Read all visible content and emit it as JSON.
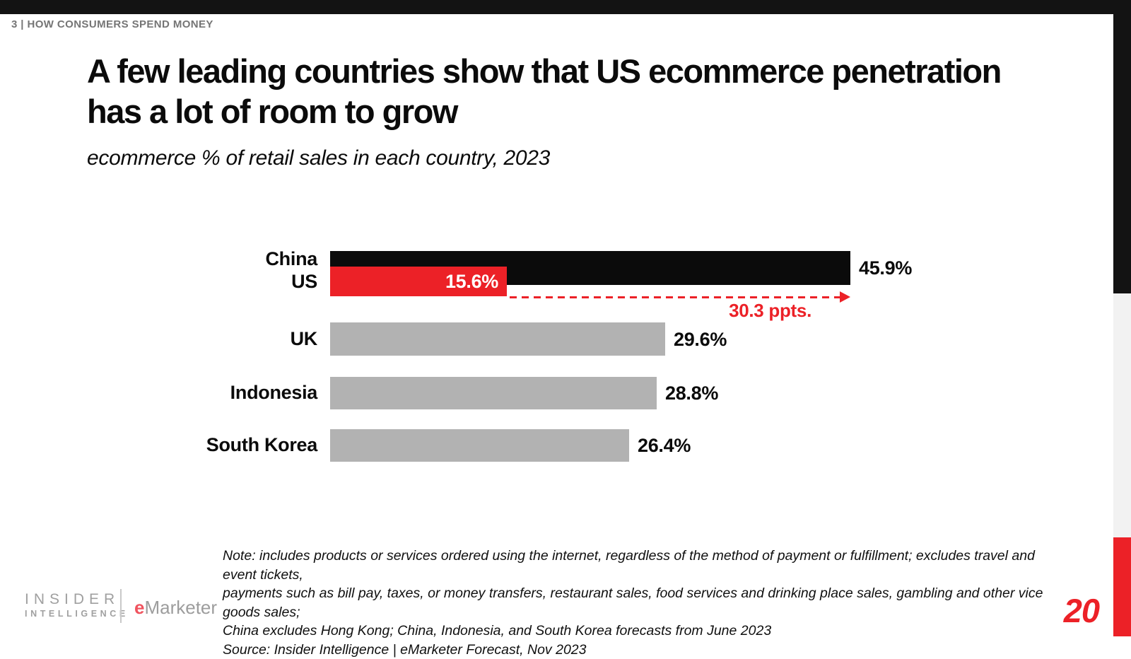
{
  "page": {
    "kicker": "3 | HOW CONSUMERS SPEND MONEY",
    "page_number": "20"
  },
  "header": {
    "title": "A few leading countries show that US ecommerce penetration has a lot of room to grow",
    "subtitle": "ecommerce % of retail sales in each country, 2023"
  },
  "chart_data": {
    "type": "bar",
    "orientation": "horizontal",
    "title": "ecommerce % of retail sales in each country, 2023",
    "categories": [
      "China",
      "US",
      "UK",
      "Indonesia",
      "South Korea"
    ],
    "values": [
      45.9,
      15.6,
      29.6,
      28.8,
      26.4
    ],
    "value_labels": [
      "45.9%",
      "15.6%",
      "29.6%",
      "28.8%",
      "26.4%"
    ],
    "unit": "%",
    "xlim": [
      0,
      45.9
    ],
    "axes_shown": false,
    "grid": false,
    "bar_colors": [
      "#0b0b0b",
      "#ec2127",
      "#b2b2b2",
      "#b2b2b2",
      "#b2b2b2"
    ],
    "value_label_inside": [
      false,
      true,
      false,
      false,
      false
    ],
    "annotation": {
      "text": "30.3 ppts.",
      "from_category": "US",
      "to_category": "China",
      "style": "dashed-arrow",
      "color": "#ec2127"
    }
  },
  "note": {
    "line1": "Note: includes products or services ordered using the internet, regardless of the method of payment or fulfillment; excludes travel and event tickets,",
    "line2": "payments such as bill pay, taxes, or money transfers, restaurant sales, food services and drinking place sales, gambling and other vice goods sales;",
    "line3": "China excludes Hong Kong; China, Indonesia, and South Korea forecasts from June 2023",
    "source": "Source: Insider Intelligence | eMarketer Forecast, Nov 2023"
  },
  "footer": {
    "insider_line1": "INSIDER",
    "insider_line2": "INTELLIGENCE",
    "emarketer_e": "e",
    "emarketer_rest": "Marketer"
  },
  "colors": {
    "accent_red": "#ec2127",
    "bar_black": "#0b0b0b",
    "bar_gray": "#b2b2b2",
    "kicker_gray": "#757575",
    "brand_gray": "#a0a0a0"
  }
}
